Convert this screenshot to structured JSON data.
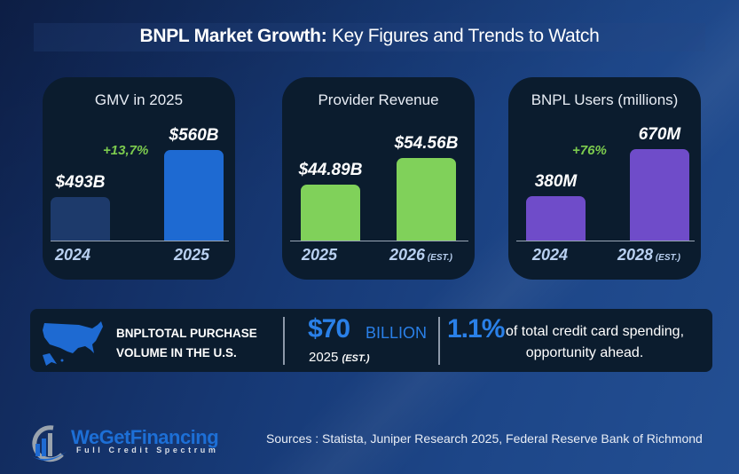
{
  "title": {
    "bold": "BNPL Market Growth:",
    "rest": " Key Figures and Trends to Watch"
  },
  "colors": {
    "gmv_2024": "#1d3a6b",
    "gmv_2025": "#1e6ad2",
    "revenue": "#80d15a",
    "users": "#6f4cc9",
    "growth": "#7ccb4e",
    "accent_blue": "#2a80e8",
    "card_bg": "#0b1c2e"
  },
  "chart_data": [
    {
      "type": "bar",
      "title": "GMV in 2025",
      "categories": [
        "2024",
        "2025"
      ],
      "values": [
        493,
        560
      ],
      "value_labels": [
        "$493B",
        "$560B"
      ],
      "unit": "USD billions",
      "annotation": "+13,7%",
      "category_notes": [
        "",
        ""
      ]
    },
    {
      "type": "bar",
      "title": "Provider Revenue",
      "categories": [
        "2025",
        "2026"
      ],
      "values": [
        44.89,
        54.56
      ],
      "value_labels": [
        "$44.89B",
        "$54.56B"
      ],
      "unit": "USD billions",
      "annotation": "",
      "category_notes": [
        "",
        "(EST.)"
      ]
    },
    {
      "type": "bar",
      "title": "BNPL Users (millions)",
      "categories": [
        "2024",
        "2028"
      ],
      "values": [
        380,
        670
      ],
      "value_labels": [
        "380M",
        "670M"
      ],
      "unit": "millions",
      "annotation": "+76%",
      "category_notes": [
        "",
        "(EST.)"
      ]
    }
  ],
  "summary": {
    "label_line1": "BNPLTOTAL PURCHASE",
    "label_line2": "VOLUME IN THE U.S.",
    "amount": "$70",
    "amount_unit": "BILLION",
    "amount_year": "2025",
    "amount_note": "(EST.)",
    "percent": "1.1%",
    "percent_text1": "of total credit card spending,",
    "percent_text2": "opportunity ahead."
  },
  "footer": {
    "brand": "WeGetFinancing",
    "tagline": "Full Credit Spectrum",
    "sources": "Sources : Statista, Juniper Research 2025, Federal Reserve Bank of Richmond"
  }
}
